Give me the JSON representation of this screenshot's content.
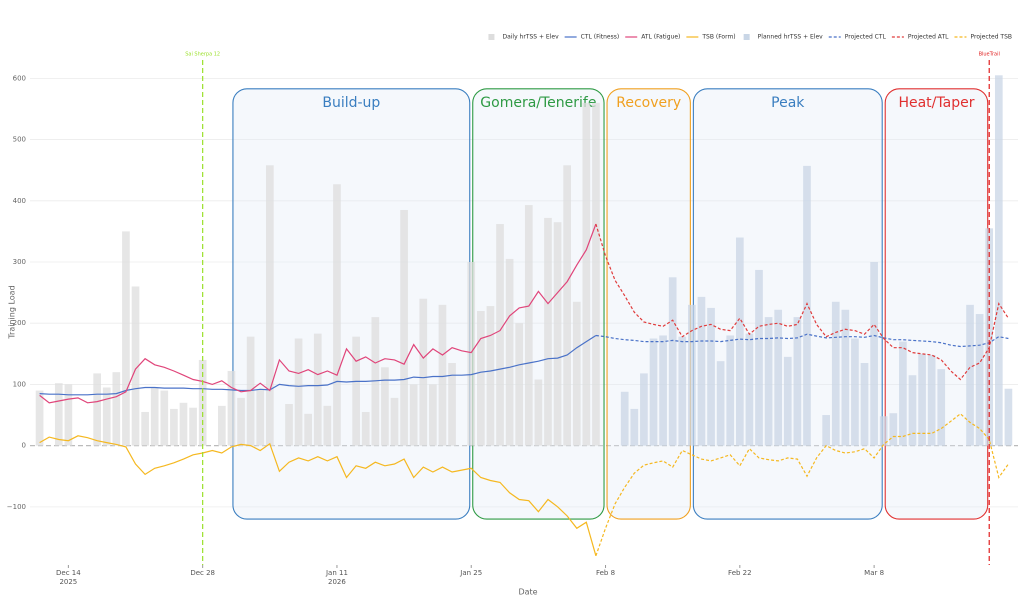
{
  "chart_data": {
    "type": "combo",
    "xlabel": "Date",
    "ylabel": "Training Load",
    "x": [
      "2025-12-11",
      "2025-12-12",
      "2025-12-13",
      "2025-12-14",
      "2025-12-15",
      "2025-12-16",
      "2025-12-17",
      "2025-12-18",
      "2025-12-19",
      "2025-12-20",
      "2025-12-21",
      "2025-12-22",
      "2025-12-23",
      "2025-12-24",
      "2025-12-25",
      "2025-12-26",
      "2025-12-27",
      "2025-12-28",
      "2025-12-29",
      "2025-12-30",
      "2025-12-31",
      "2026-01-01",
      "2026-01-02",
      "2026-01-03",
      "2026-01-04",
      "2026-01-05",
      "2026-01-06",
      "2026-01-07",
      "2026-01-08",
      "2026-01-09",
      "2026-01-10",
      "2026-01-11",
      "2026-01-12",
      "2026-01-13",
      "2026-01-14",
      "2026-01-15",
      "2026-01-16",
      "2026-01-17",
      "2026-01-18",
      "2026-01-19",
      "2026-01-20",
      "2026-01-21",
      "2026-01-22",
      "2026-01-23",
      "2026-01-24",
      "2026-01-25",
      "2026-01-26",
      "2026-01-27",
      "2026-01-28",
      "2026-01-29",
      "2026-01-30",
      "2026-01-31",
      "2026-02-01",
      "2026-02-02",
      "2026-02-03",
      "2026-02-04",
      "2026-02-05",
      "2026-02-06",
      "2026-02-07",
      "2026-02-08",
      "2026-02-09",
      "2026-02-10",
      "2026-02-11",
      "2026-02-12",
      "2026-02-13",
      "2026-02-14",
      "2026-02-15",
      "2026-02-16",
      "2026-02-17",
      "2026-02-18",
      "2026-02-19",
      "2026-02-20",
      "2026-02-21",
      "2026-02-22",
      "2026-02-23",
      "2026-02-24",
      "2026-02-25",
      "2026-02-26",
      "2026-02-27",
      "2026-02-28",
      "2026-03-01",
      "2026-03-02",
      "2026-03-03",
      "2026-03-04",
      "2026-03-05",
      "2026-03-06",
      "2026-03-07",
      "2026-03-08",
      "2026-03-09",
      "2026-03-10",
      "2026-03-11",
      "2026-03-12",
      "2026-03-13",
      "2026-03-14",
      "2026-03-15",
      "2026-03-16",
      "2026-03-17",
      "2026-03-18",
      "2026-03-19",
      "2026-03-20",
      "2026-03-21",
      "2026-03-22"
    ],
    "xlim": [
      "2025-12-10",
      "2026-03-23"
    ],
    "xticks": [
      {
        "value": "2025-12-14",
        "label": "Dec 14\n2025"
      },
      {
        "value": "2025-12-28",
        "label": "Dec 28"
      },
      {
        "value": "2026-01-11",
        "label": "Jan 11\n2026"
      },
      {
        "value": "2026-01-25",
        "label": "Jan 25"
      },
      {
        "value": "2026-02-08",
        "label": "Feb 8"
      },
      {
        "value": "2026-02-22",
        "label": "Feb 22"
      },
      {
        "value": "2026-03-08",
        "label": "Mar 8"
      }
    ],
    "ylim": [
      -195,
      630
    ],
    "yticks": [
      {
        "value": -100,
        "label": "−100"
      },
      0,
      100,
      200,
      300,
      400,
      500,
      600
    ],
    "grid": true,
    "legend": "top-right",
    "series": [
      {
        "name": "Daily hrTSS + Elev",
        "mark": "bar",
        "color": "#dddddd",
        "values": [
          90,
          null,
          102,
          100,
          null,
          null,
          118,
          95,
          120,
          350,
          260,
          55,
          95,
          90,
          60,
          70,
          62,
          140,
          null,
          65,
          122,
          78,
          178,
          92,
          458,
          null,
          68,
          175,
          52,
          183,
          65,
          427,
          null,
          178,
          55,
          210,
          128,
          78,
          385,
          100,
          240,
          100,
          230,
          135,
          null,
          300,
          220,
          228,
          362,
          305,
          200,
          393,
          108,
          372,
          365,
          458,
          235,
          560,
          560,
          null,
          null,
          null,
          null,
          null,
          null,
          null,
          null,
          null,
          null,
          null,
          null,
          null,
          null,
          null,
          null,
          null,
          null,
          null,
          null,
          null,
          null,
          null,
          null,
          null,
          null,
          null,
          null,
          null,
          null,
          null,
          null,
          null,
          null,
          null,
          null,
          null,
          null,
          null,
          null,
          null,
          null,
          null
        ]
      },
      {
        "name": "CTL (Fitness)",
        "mark": "line",
        "color": "#4a72c8",
        "values": [
          85,
          84,
          84,
          83,
          83,
          83,
          84,
          84,
          85,
          90,
          93,
          95,
          95,
          94,
          94,
          94,
          93,
          93,
          92,
          92,
          91,
          90,
          90,
          92,
          91,
          100,
          98,
          97,
          98,
          98,
          99,
          105,
          104,
          105,
          105,
          106,
          107,
          107,
          108,
          112,
          111,
          113,
          113,
          115,
          115,
          116,
          120,
          122,
          125,
          128,
          132,
          135,
          138,
          142,
          143,
          148,
          160,
          170,
          180,
          null,
          null,
          null,
          null,
          null,
          null,
          null,
          null,
          null,
          null,
          null,
          null,
          null,
          null,
          null,
          null,
          null,
          null,
          null,
          null,
          null,
          null,
          null,
          null,
          null,
          null,
          null,
          null,
          null,
          null,
          null,
          null,
          null,
          null,
          null,
          null,
          null,
          null,
          null,
          null,
          null,
          null,
          null
        ]
      },
      {
        "name": "ATL (Fatigue)",
        "mark": "line",
        "color": "#e0457a",
        "values": [
          82,
          70,
          73,
          76,
          78,
          70,
          72,
          76,
          80,
          88,
          125,
          142,
          132,
          128,
          122,
          115,
          108,
          105,
          100,
          106,
          95,
          88,
          90,
          102,
          90,
          140,
          122,
          118,
          124,
          116,
          122,
          115,
          158,
          138,
          145,
          135,
          142,
          140,
          133,
          165,
          143,
          158,
          148,
          160,
          155,
          152,
          175,
          180,
          188,
          212,
          225,
          228,
          252,
          232,
          250,
          268,
          295,
          320,
          362,
          null,
          null,
          null,
          null,
          null,
          null,
          null,
          null,
          null,
          null,
          null,
          null,
          null,
          null,
          null,
          null,
          null,
          null,
          null,
          null,
          null,
          null,
          null,
          null,
          null,
          null,
          null,
          null,
          null,
          null,
          null,
          null,
          null,
          null,
          null,
          null,
          null,
          null,
          null,
          null,
          null,
          null,
          null
        ]
      },
      {
        "name": "TSB (Form)",
        "mark": "line",
        "color": "#f5b820",
        "values": [
          5,
          14,
          10,
          8,
          16,
          13,
          8,
          5,
          2,
          -2,
          -30,
          -47,
          -37,
          -33,
          -28,
          -22,
          -15,
          -12,
          -8,
          -12,
          -2,
          2,
          0,
          -8,
          3,
          -42,
          -27,
          -20,
          -25,
          -18,
          -25,
          -18,
          -52,
          -33,
          -37,
          -27,
          -33,
          -30,
          -22,
          -52,
          -35,
          -43,
          -35,
          -43,
          -40,
          -37,
          -52,
          -57,
          -60,
          -77,
          -88,
          -90,
          -108,
          -88,
          -100,
          -115,
          -135,
          -125,
          -180,
          null,
          null,
          null,
          null,
          null,
          null,
          null,
          null,
          null,
          null,
          null,
          null,
          null,
          null,
          null,
          null,
          null,
          null,
          null,
          null,
          null,
          null,
          null,
          null,
          null,
          null,
          null,
          null,
          null,
          null,
          null,
          null,
          null,
          null,
          null,
          null,
          null,
          null,
          null,
          null,
          null,
          null,
          null
        ]
      },
      {
        "name": "Planned hrTSS + Elev",
        "mark": "bar",
        "color": "#c9d6e6",
        "values": [
          null,
          null,
          null,
          null,
          null,
          null,
          null,
          null,
          null,
          null,
          null,
          null,
          null,
          null,
          null,
          null,
          null,
          null,
          null,
          null,
          null,
          null,
          null,
          null,
          null,
          null,
          null,
          null,
          null,
          null,
          null,
          null,
          null,
          null,
          null,
          null,
          null,
          null,
          null,
          null,
          null,
          null,
          null,
          null,
          null,
          null,
          null,
          null,
          null,
          null,
          null,
          null,
          null,
          null,
          null,
          null,
          null,
          null,
          null,
          null,
          null,
          88,
          60,
          118,
          175,
          180,
          275,
          178,
          230,
          243,
          225,
          138,
          180,
          340,
          183,
          287,
          210,
          222,
          145,
          210,
          457,
          null,
          50,
          235,
          222,
          175,
          135,
          300,
          48,
          53,
          170,
          115,
          150,
          148,
          125,
          null,
          null,
          230,
          215,
          355,
          605,
          93
        ]
      },
      {
        "name": "Projected CTL",
        "mark": "line",
        "dashed": true,
        "color": "#4a72c8",
        "values": [
          null,
          null,
          null,
          null,
          null,
          null,
          null,
          null,
          null,
          null,
          null,
          null,
          null,
          null,
          null,
          null,
          null,
          null,
          null,
          null,
          null,
          null,
          null,
          null,
          null,
          null,
          null,
          null,
          null,
          null,
          null,
          null,
          null,
          null,
          null,
          null,
          null,
          null,
          null,
          null,
          null,
          null,
          null,
          null,
          null,
          null,
          null,
          null,
          null,
          null,
          null,
          null,
          null,
          null,
          null,
          null,
          null,
          null,
          180,
          178,
          175,
          173,
          172,
          170,
          170,
          170,
          172,
          170,
          170,
          171,
          171,
          170,
          172,
          174,
          173,
          175,
          175,
          176,
          175,
          176,
          182,
          179,
          176,
          177,
          178,
          178,
          177,
          180,
          176,
          173,
          173,
          172,
          171,
          170,
          168,
          164,
          162,
          163,
          164,
          168,
          178,
          175
        ]
      },
      {
        "name": "Projected ATL",
        "mark": "line",
        "dashed": true,
        "color": "#e03c3c",
        "values": [
          null,
          null,
          null,
          null,
          null,
          null,
          null,
          null,
          null,
          null,
          null,
          null,
          null,
          null,
          null,
          null,
          null,
          null,
          null,
          null,
          null,
          null,
          null,
          null,
          null,
          null,
          null,
          null,
          null,
          null,
          null,
          null,
          null,
          null,
          null,
          null,
          null,
          null,
          null,
          null,
          null,
          null,
          null,
          null,
          null,
          null,
          null,
          null,
          null,
          null,
          null,
          null,
          null,
          null,
          null,
          null,
          null,
          null,
          362,
          310,
          270,
          245,
          218,
          202,
          198,
          195,
          205,
          178,
          188,
          195,
          198,
          190,
          188,
          208,
          182,
          195,
          198,
          200,
          195,
          198,
          232,
          198,
          178,
          185,
          190,
          188,
          182,
          198,
          175,
          160,
          160,
          152,
          150,
          148,
          140,
          122,
          108,
          128,
          135,
          160,
          232,
          208
        ]
      },
      {
        "name": "Projected TSB",
        "mark": "line",
        "dashed": true,
        "color": "#f5b820",
        "values": [
          null,
          null,
          null,
          null,
          null,
          null,
          null,
          null,
          null,
          null,
          null,
          null,
          null,
          null,
          null,
          null,
          null,
          null,
          null,
          null,
          null,
          null,
          null,
          null,
          null,
          null,
          null,
          null,
          null,
          null,
          null,
          null,
          null,
          null,
          null,
          null,
          null,
          null,
          null,
          null,
          null,
          null,
          null,
          null,
          null,
          null,
          null,
          null,
          null,
          null,
          null,
          null,
          null,
          null,
          null,
          null,
          null,
          null,
          -180,
          -135,
          -95,
          -68,
          -45,
          -32,
          -28,
          -25,
          -35,
          -8,
          -15,
          -22,
          -25,
          -20,
          -15,
          -33,
          -5,
          -20,
          -23,
          -25,
          -20,
          -22,
          -50,
          -20,
          0,
          -8,
          -12,
          -10,
          -5,
          -20,
          2,
          15,
          15,
          20,
          20,
          20,
          28,
          40,
          52,
          38,
          28,
          10,
          -52,
          -30
        ]
      }
    ],
    "phases": [
      {
        "label": "Build-up",
        "start": "2025-12-31",
        "end": "2026-01-25",
        "color": "#3a7ec0"
      },
      {
        "label": "Gomera/Tenerife",
        "start": "2026-01-25",
        "end": "2026-02-08",
        "color": "#2e9a44"
      },
      {
        "label": "Recovery",
        "start": "2026-02-08",
        "end": "2026-02-17",
        "color": "#f0a020"
      },
      {
        "label": "Peak",
        "start": "2026-02-17",
        "end": "2026-03-09",
        "color": "#3a7ec0"
      },
      {
        "label": "Heat/Taper",
        "start": "2026-03-09",
        "end": "2026-03-20",
        "color": "#e03030"
      }
    ],
    "markers": [
      {
        "label": "Sai Sherpa 12",
        "date": "2025-12-28",
        "color": "#9be02a"
      },
      {
        "label": "BlueTrail",
        "date": "2026-03-20",
        "color": "#e02020"
      }
    ]
  }
}
